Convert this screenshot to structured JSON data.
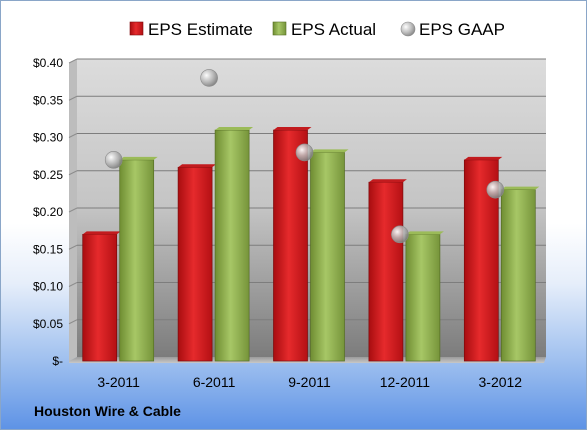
{
  "chart_data": {
    "type": "bar",
    "categories": [
      "3-2011",
      "6-2011",
      "9-2011",
      "12-2011",
      "3-2012"
    ],
    "series": [
      {
        "name": "EPS Estimate",
        "kind": "bar",
        "values": [
          0.17,
          0.26,
          0.31,
          0.24,
          0.27
        ],
        "color": "#d0151b"
      },
      {
        "name": "EPS Actual",
        "kind": "bar",
        "values": [
          0.27,
          0.31,
          0.28,
          0.17,
          0.23
        ],
        "color": "#8fb04a"
      },
      {
        "name": "EPS GAAP",
        "kind": "scatter",
        "values": [
          0.27,
          0.38,
          0.28,
          0.17,
          0.23
        ],
        "color": "#b3b3b3"
      }
    ],
    "yticks": [
      "$-",
      "$0.05",
      "$0.10",
      "$0.15",
      "$0.20",
      "$0.25",
      "$0.30",
      "$0.35",
      "$0.40"
    ],
    "ylim": [
      0,
      0.4
    ],
    "grid": true,
    "legend": "top"
  },
  "footer": {
    "company": "Houston Wire & Cable"
  }
}
